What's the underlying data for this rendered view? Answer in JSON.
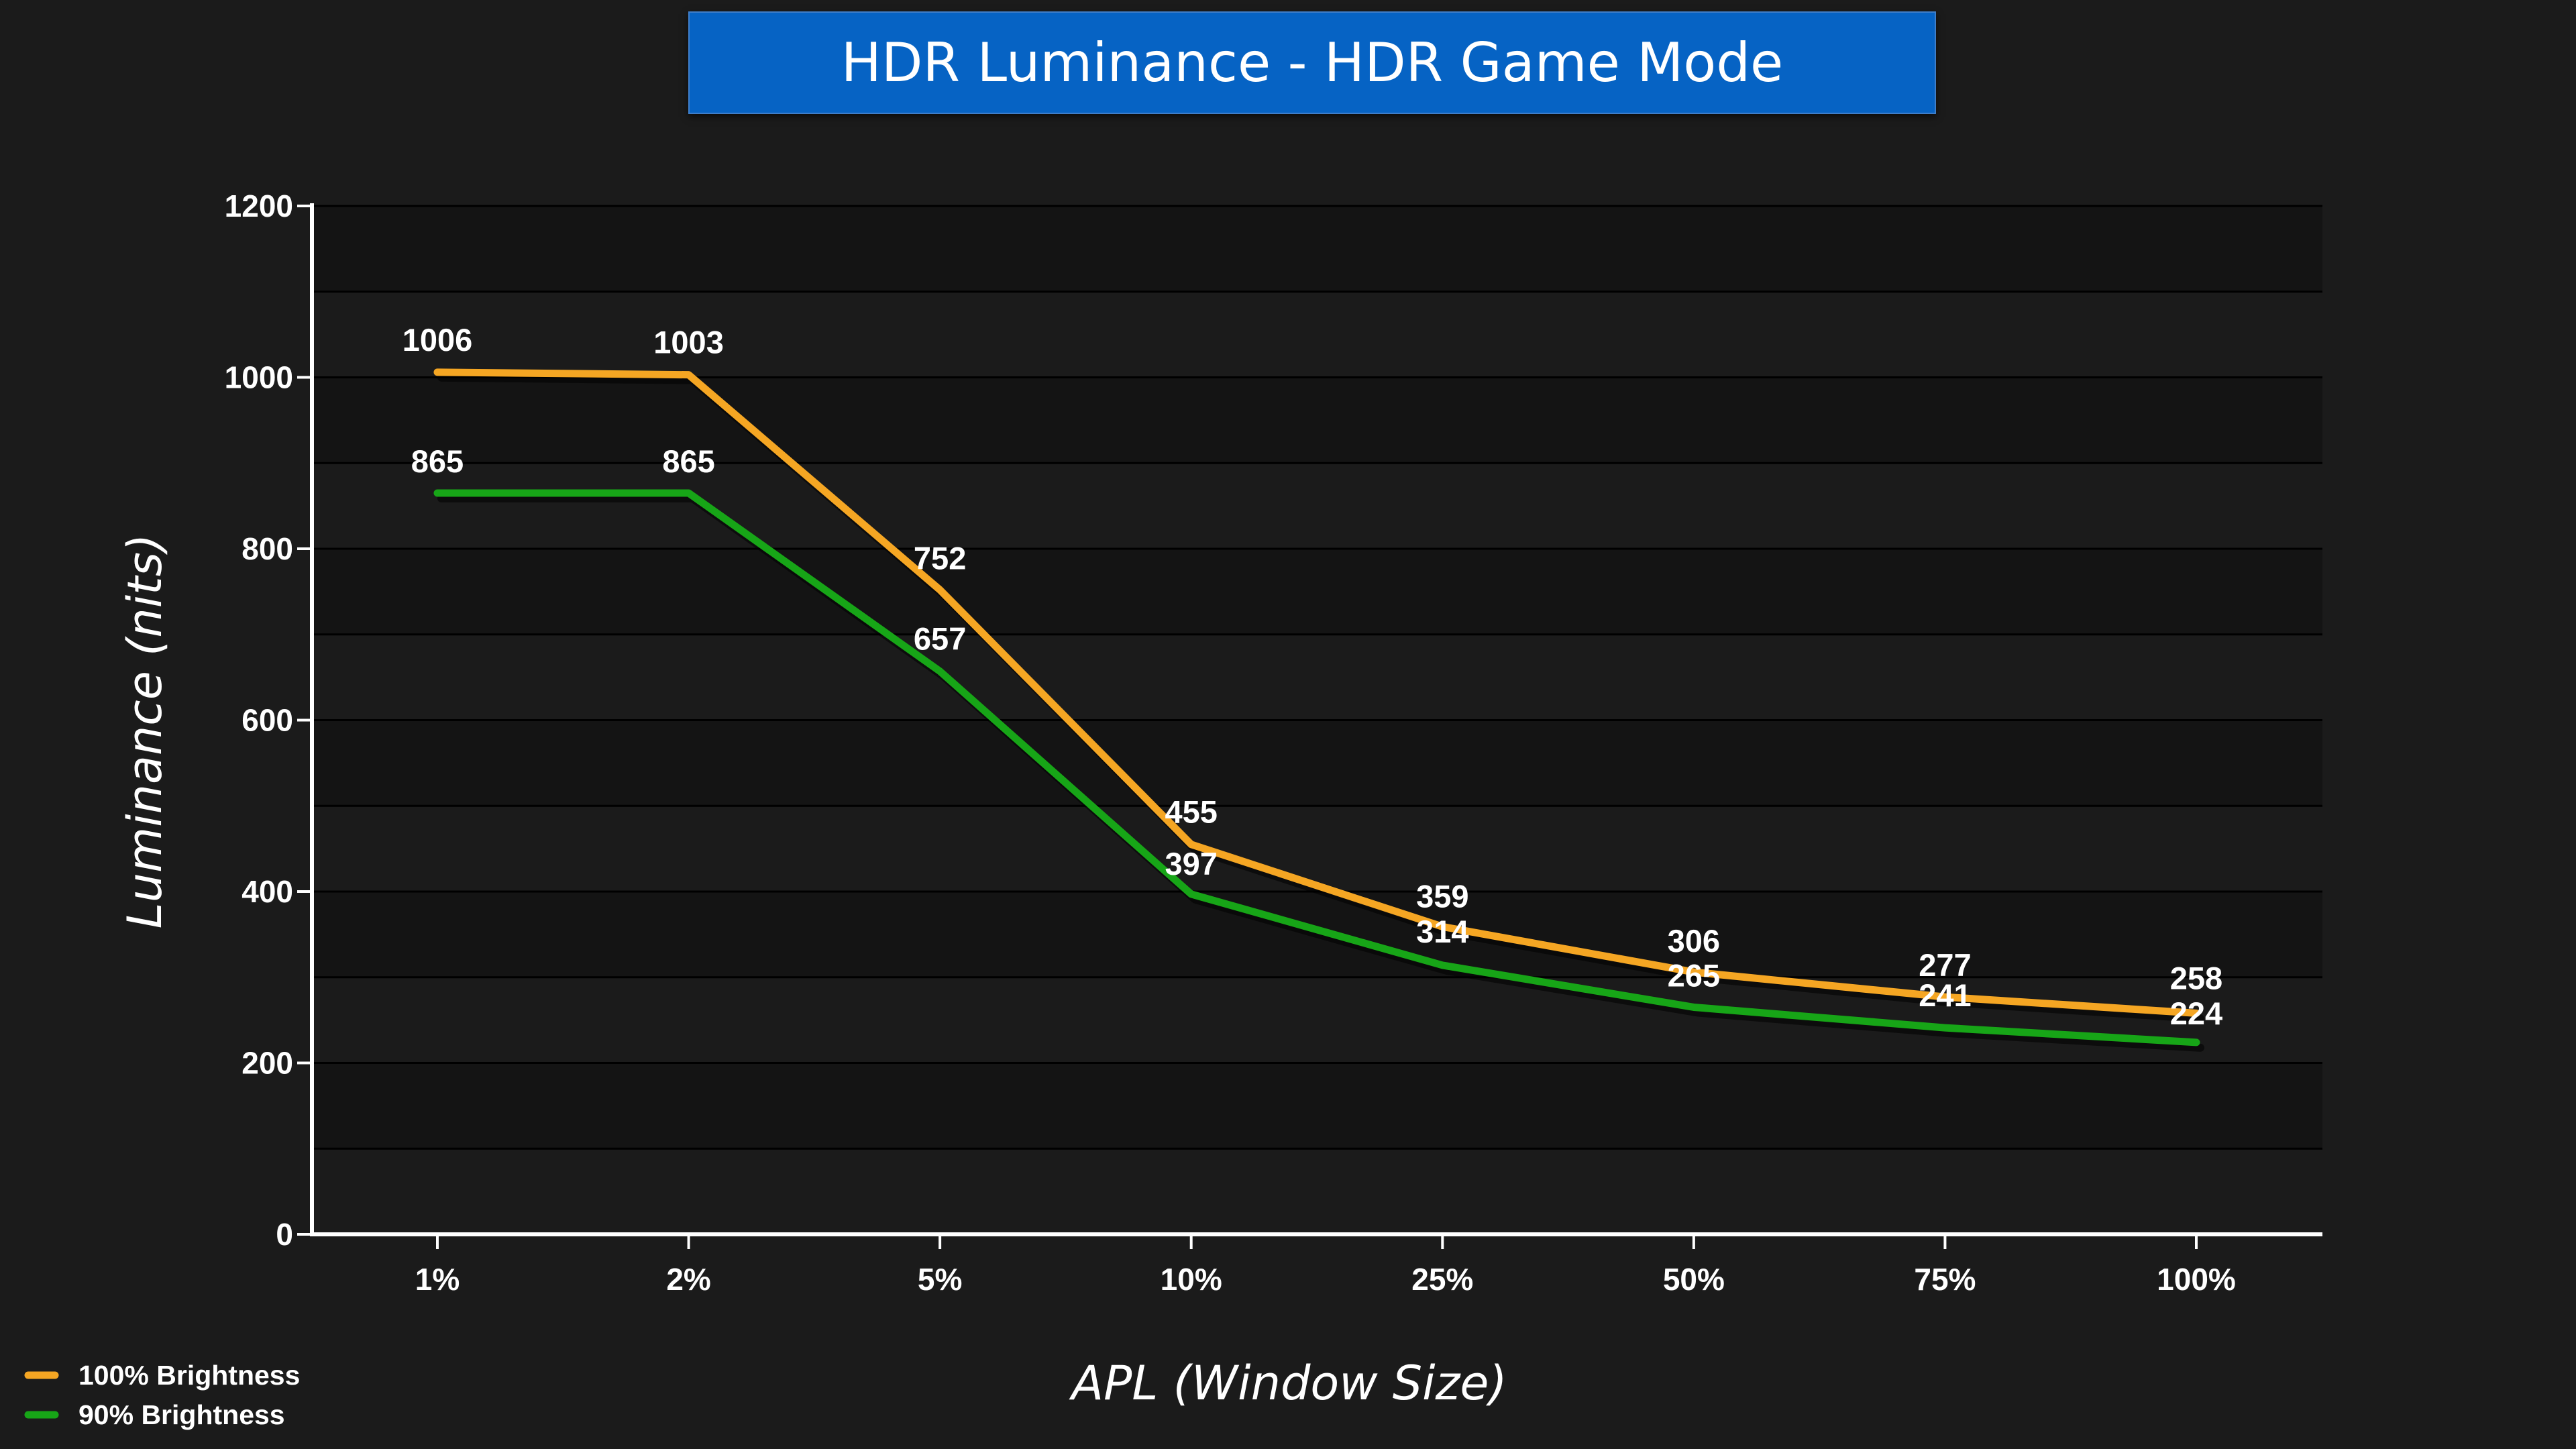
{
  "chart_data": {
    "type": "line",
    "title": "HDR Luminance - HDR Game Mode",
    "xlabel": "APL (Window Size)",
    "ylabel": "Luminance (nits)",
    "categories": [
      "1%",
      "2%",
      "5%",
      "10%",
      "25%",
      "50%",
      "75%",
      "100%"
    ],
    "ylim": [
      0,
      1200
    ],
    "yticks": [
      0,
      200,
      400,
      600,
      800,
      1000,
      1200
    ],
    "grid": true,
    "legend_position": "bottom-left",
    "series": [
      {
        "name": "100% Brightness",
        "color": "#f5a623",
        "values": [
          1006,
          1003,
          752,
          455,
          359,
          306,
          277,
          258
        ]
      },
      {
        "name": "90% Brightness",
        "color": "#17a517",
        "values": [
          865,
          865,
          657,
          397,
          314,
          265,
          241,
          224
        ]
      }
    ]
  }
}
